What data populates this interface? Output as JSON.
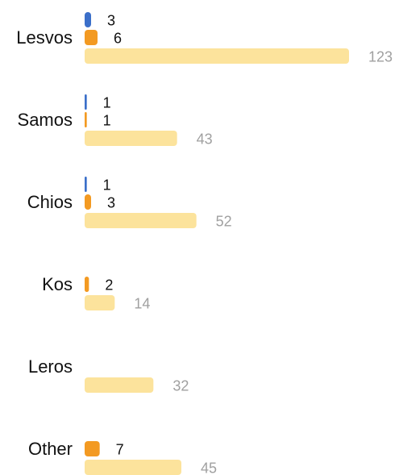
{
  "chart_data": {
    "type": "bar",
    "orientation": "horizontal",
    "categories": [
      "Lesvos",
      "Samos",
      "Chios",
      "Kos",
      "Leros",
      "Other"
    ],
    "series": [
      {
        "values": [
          3,
          1,
          1,
          0,
          0,
          0
        ],
        "color": "#3b6fc9"
      },
      {
        "values": [
          6,
          1,
          3,
          2,
          0,
          7
        ],
        "color": "#f39a22"
      },
      {
        "values": [
          123,
          43,
          52,
          14,
          32,
          45
        ],
        "color": "#fce39c"
      }
    ],
    "title": "",
    "xlabel": "",
    "ylabel": "",
    "xlim": [
      0,
      125
    ],
    "grid": false,
    "legend": "none",
    "colors": {
      "label_dark": "#111111",
      "label_muted": "#a0a0a0"
    }
  }
}
